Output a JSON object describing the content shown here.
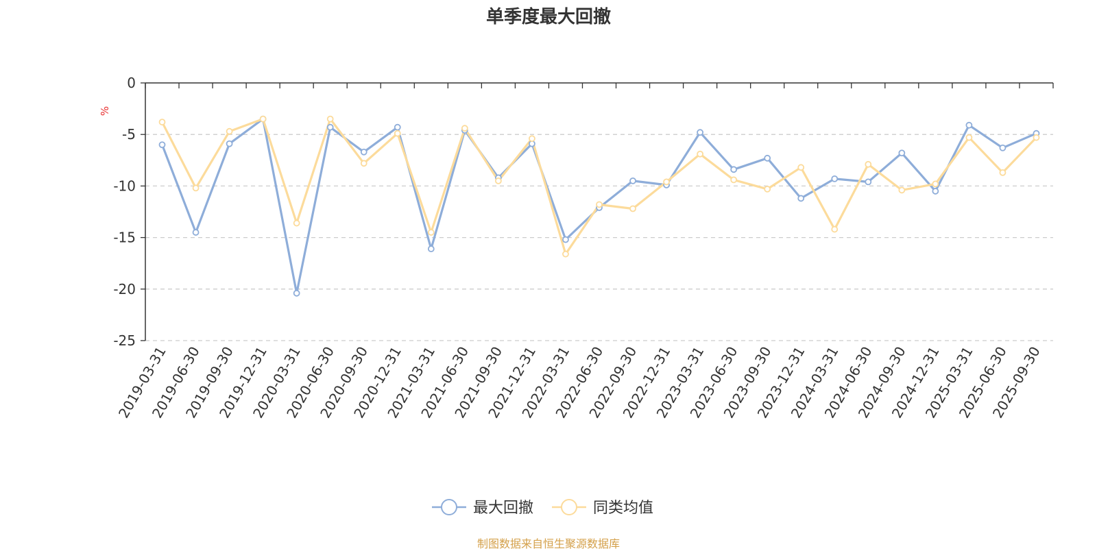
{
  "chart_data": {
    "type": "line",
    "title": "单季度最大回撤",
    "ylabel": "%",
    "xlabel": "",
    "ylim": [
      -25,
      0
    ],
    "yticks": [
      0,
      -5,
      -10,
      -15,
      -20,
      -25
    ],
    "grid": true,
    "legend_position": "bottom-center",
    "categories": [
      "2019-03-31",
      "2019-06-30",
      "2019-09-30",
      "2019-12-31",
      "2020-03-31",
      "2020-06-30",
      "2020-09-30",
      "2020-12-31",
      "2021-03-31",
      "2021-06-30",
      "2021-09-30",
      "2021-12-31",
      "2022-03-31",
      "2022-06-30",
      "2022-09-30",
      "2022-12-31",
      "2023-03-31",
      "2023-06-30",
      "2023-09-30",
      "2023-12-31",
      "2024-03-31",
      "2024-06-30",
      "2024-09-30",
      "2024-12-31",
      "2025-03-31",
      "2025-06-30",
      "2025-09-30"
    ],
    "series": [
      {
        "name": "最大回撤",
        "color": "#8eadd9",
        "values": [
          -6.0,
          -14.5,
          -5.9,
          -3.5,
          -20.4,
          -4.3,
          -6.7,
          -4.3,
          -16.1,
          -4.6,
          -9.2,
          -5.9,
          -15.2,
          -12.1,
          -9.5,
          -9.9,
          -4.8,
          -8.4,
          -7.3,
          -11.2,
          -9.3,
          -9.6,
          -6.8,
          -10.5,
          -4.1,
          -6.3,
          -4.9
        ]
      },
      {
        "name": "同类均值",
        "color": "#fcdb9b",
        "values": [
          -3.8,
          -10.2,
          -4.7,
          -3.5,
          -13.6,
          -3.5,
          -7.8,
          -4.9,
          -14.5,
          -4.4,
          -9.5,
          -5.4,
          -16.6,
          -11.8,
          -12.2,
          -9.6,
          -6.9,
          -9.4,
          -10.3,
          -8.2,
          -14.2,
          -7.9,
          -10.4,
          -9.8,
          -5.3,
          -8.7,
          -5.3
        ]
      }
    ]
  },
  "source_note": "制图数据来自恒生聚源数据库"
}
